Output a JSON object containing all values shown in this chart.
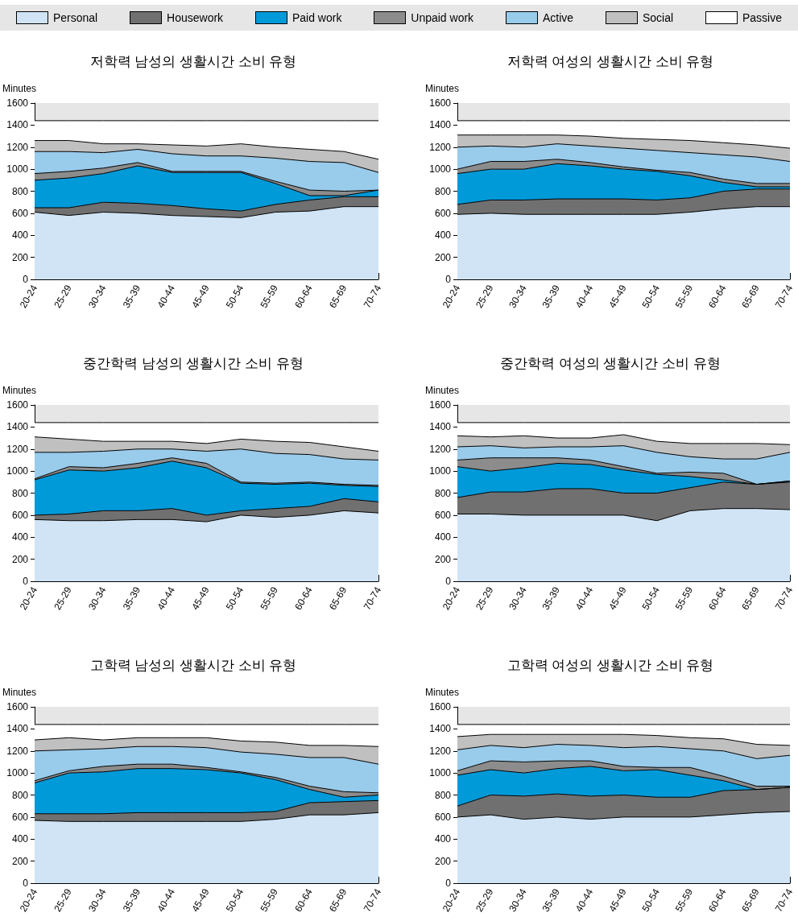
{
  "chart_data": [
    {
      "type": "area",
      "stacked": true,
      "title": "저학력 남성의 생활시간 소비 유형",
      "ylabel": "Minutes",
      "legend": "top",
      "grid": false,
      "ylim": [
        0,
        1600
      ],
      "yticks": [
        0,
        200,
        400,
        600,
        800,
        1000,
        1200,
        1400,
        1600
      ],
      "categories": [
        "20-24",
        "25-29",
        "30-34",
        "35-39",
        "40-44",
        "45-49",
        "50-54",
        "55-59",
        "60-64",
        "65-69",
        "70-74"
      ],
      "series": [
        {
          "name": "Personal",
          "color": "#d0e4f5",
          "values": [
            610,
            580,
            610,
            600,
            580,
            570,
            560,
            610,
            620,
            660,
            660
          ]
        },
        {
          "name": "Housework",
          "color": "#707070",
          "values": [
            40,
            70,
            90,
            90,
            90,
            70,
            60,
            70,
            100,
            90,
            90
          ]
        },
        {
          "name": "Paid work",
          "color": "#009ad9",
          "values": [
            250,
            270,
            260,
            340,
            300,
            330,
            350,
            190,
            40,
            10,
            60
          ]
        },
        {
          "name": "Unpaid work",
          "color": "#8c8c8c",
          "values": [
            60,
            60,
            50,
            30,
            10,
            10,
            10,
            20,
            50,
            40,
            0
          ]
        },
        {
          "name": "Active",
          "color": "#99cbeb",
          "values": [
            200,
            180,
            140,
            120,
            160,
            140,
            140,
            210,
            260,
            260,
            160
          ]
        },
        {
          "name": "Social",
          "color": "#c0c0c0",
          "values": [
            100,
            100,
            80,
            50,
            80,
            90,
            110,
            100,
            110,
            100,
            120
          ]
        },
        {
          "name": "Passive",
          "color": "#ffffff",
          "values": [
            180,
            180,
            210,
            210,
            220,
            230,
            210,
            240,
            260,
            280,
            350
          ]
        }
      ]
    },
    {
      "type": "area",
      "stacked": true,
      "title": "저학력 여성의 생활시간 소비 유형",
      "ylabel": "Minutes",
      "grid": false,
      "ylim": [
        0,
        1600
      ],
      "yticks": [
        0,
        200,
        400,
        600,
        800,
        1000,
        1200,
        1400,
        1600
      ],
      "categories": [
        "20-24",
        "25-29",
        "30-34",
        "35-39",
        "40-44",
        "45-49",
        "50-54",
        "55-59",
        "60-64",
        "65-69",
        "70-74"
      ],
      "series": [
        {
          "color": "#d0e4f5",
          "values": [
            590,
            600,
            590,
            590,
            590,
            590,
            590,
            610,
            640,
            660,
            660
          ]
        },
        {
          "color": "#707070",
          "values": [
            90,
            120,
            130,
            140,
            140,
            140,
            130,
            130,
            160,
            160,
            160
          ]
        },
        {
          "color": "#009ad9",
          "values": [
            280,
            280,
            280,
            320,
            300,
            270,
            260,
            200,
            80,
            20,
            20
          ]
        },
        {
          "color": "#8c8c8c",
          "values": [
            40,
            70,
            70,
            40,
            30,
            20,
            10,
            30,
            30,
            30,
            30
          ]
        },
        {
          "color": "#99cbeb",
          "values": [
            200,
            140,
            130,
            140,
            150,
            170,
            180,
            180,
            220,
            240,
            200
          ]
        },
        {
          "color": "#c0c0c0",
          "values": [
            110,
            100,
            110,
            80,
            90,
            90,
            100,
            110,
            110,
            110,
            120
          ]
        },
        {
          "color": "#ffffff",
          "values": [
            130,
            130,
            130,
            130,
            140,
            160,
            170,
            180,
            200,
            220,
            250
          ]
        }
      ]
    },
    {
      "type": "area",
      "stacked": true,
      "title": "중간학력 남성의 생활시간 소비 유형",
      "ylabel": "Minutes",
      "grid": false,
      "ylim": [
        0,
        1600
      ],
      "yticks": [
        0,
        200,
        400,
        600,
        800,
        1000,
        1200,
        1400,
        1600
      ],
      "categories": [
        "20-24",
        "25-29",
        "30-34",
        "35-39",
        "40-44",
        "45-49",
        "50-54",
        "55-59",
        "60-64",
        "65-69",
        "70-74"
      ],
      "series": [
        {
          "color": "#d0e4f5",
          "values": [
            560,
            550,
            550,
            560,
            560,
            540,
            600,
            580,
            600,
            640,
            620
          ]
        },
        {
          "color": "#707070",
          "values": [
            40,
            60,
            90,
            80,
            100,
            60,
            40,
            80,
            80,
            110,
            100
          ]
        },
        {
          "color": "#009ad9",
          "values": [
            320,
            400,
            360,
            390,
            430,
            430,
            250,
            220,
            210,
            120,
            140
          ]
        },
        {
          "color": "#8c8c8c",
          "values": [
            10,
            30,
            30,
            40,
            30,
            40,
            10,
            10,
            10,
            10,
            10
          ]
        },
        {
          "color": "#99cbeb",
          "values": [
            240,
            130,
            150,
            130,
            80,
            110,
            300,
            270,
            250,
            230,
            230
          ]
        },
        {
          "color": "#c0c0c0",
          "values": [
            140,
            120,
            90,
            70,
            70,
            70,
            90,
            110,
            110,
            110,
            80
          ]
        },
        {
          "color": "#ffffff",
          "values": [
            130,
            150,
            170,
            170,
            170,
            190,
            150,
            170,
            180,
            220,
            260
          ]
        }
      ]
    },
    {
      "type": "area",
      "stacked": true,
      "title": "중간학력 여성의 생활시간 소비 유형",
      "ylabel": "Minutes",
      "grid": false,
      "ylim": [
        0,
        1600
      ],
      "yticks": [
        0,
        200,
        400,
        600,
        800,
        1000,
        1200,
        1400,
        1600
      ],
      "categories": [
        "20-24",
        "25-29",
        "30-34",
        "35-39",
        "40-44",
        "45-49",
        "50-54",
        "55-59",
        "60-64",
        "65-69",
        "70-74"
      ],
      "series": [
        {
          "color": "#d0e4f5",
          "values": [
            610,
            610,
            600,
            600,
            600,
            600,
            550,
            640,
            660,
            660,
            650
          ]
        },
        {
          "color": "#707070",
          "values": [
            150,
            200,
            210,
            240,
            240,
            200,
            250,
            210,
            240,
            220,
            250
          ]
        },
        {
          "color": "#009ad9",
          "values": [
            280,
            190,
            220,
            230,
            220,
            210,
            170,
            100,
            20,
            0,
            10
          ]
        },
        {
          "color": "#8c8c8c",
          "values": [
            60,
            120,
            90,
            50,
            40,
            30,
            10,
            40,
            60,
            0,
            0
          ]
        },
        {
          "color": "#99cbeb",
          "values": [
            120,
            110,
            90,
            100,
            120,
            190,
            190,
            140,
            130,
            230,
            260
          ]
        },
        {
          "color": "#c0c0c0",
          "values": [
            100,
            80,
            110,
            80,
            80,
            100,
            100,
            120,
            140,
            140,
            70
          ]
        },
        {
          "color": "#ffffff",
          "values": [
            120,
            130,
            120,
            140,
            140,
            110,
            170,
            190,
            190,
            190,
            200
          ]
        }
      ]
    },
    {
      "type": "area",
      "stacked": true,
      "title": "고학력 남성의 생활시간 소비 유형",
      "ylabel": "Minutes",
      "grid": false,
      "ylim": [
        0,
        1600
      ],
      "yticks": [
        0,
        200,
        400,
        600,
        800,
        1000,
        1200,
        1400,
        1600
      ],
      "categories": [
        "20-24",
        "25-29",
        "30-34",
        "35-39",
        "40-44",
        "45-49",
        "50-54",
        "55-59",
        "60-64",
        "65-69",
        "70-74"
      ],
      "series": [
        {
          "color": "#d0e4f5",
          "values": [
            570,
            560,
            560,
            560,
            560,
            560,
            560,
            580,
            620,
            620,
            640
          ]
        },
        {
          "color": "#707070",
          "values": [
            60,
            70,
            70,
            80,
            80,
            80,
            80,
            70,
            110,
            120,
            110
          ]
        },
        {
          "color": "#009ad9",
          "values": [
            280,
            370,
            380,
            400,
            400,
            390,
            360,
            290,
            120,
            40,
            50
          ]
        },
        {
          "color": "#8c8c8c",
          "values": [
            20,
            20,
            50,
            40,
            40,
            20,
            10,
            20,
            30,
            50,
            20
          ]
        },
        {
          "color": "#99cbeb",
          "values": [
            270,
            190,
            160,
            160,
            160,
            180,
            180,
            210,
            260,
            310,
            260
          ]
        },
        {
          "color": "#c0c0c0",
          "values": [
            100,
            110,
            80,
            80,
            80,
            90,
            100,
            110,
            110,
            110,
            160
          ]
        },
        {
          "color": "#ffffff",
          "values": [
            140,
            120,
            140,
            120,
            120,
            120,
            150,
            160,
            190,
            190,
            200
          ]
        }
      ]
    },
    {
      "type": "area",
      "stacked": true,
      "title": "고학력 여성의 생활시간 소비 유형",
      "ylabel": "Minutes",
      "grid": false,
      "ylim": [
        0,
        1600
      ],
      "yticks": [
        0,
        200,
        400,
        600,
        800,
        1000,
        1200,
        1400,
        1600
      ],
      "categories": [
        "20-24",
        "25-29",
        "30-34",
        "35-39",
        "40-44",
        "45-49",
        "50-54",
        "55-59",
        "60-64",
        "65-69",
        "70-74"
      ],
      "series": [
        {
          "color": "#d0e4f5",
          "values": [
            600,
            620,
            580,
            600,
            580,
            600,
            600,
            600,
            620,
            640,
            650
          ]
        },
        {
          "color": "#707070",
          "values": [
            100,
            180,
            210,
            210,
            210,
            200,
            180,
            180,
            220,
            210,
            220
          ]
        },
        {
          "color": "#009ad9",
          "values": [
            280,
            230,
            210,
            230,
            270,
            220,
            250,
            200,
            90,
            0,
            0
          ]
        },
        {
          "color": "#8c8c8c",
          "values": [
            40,
            80,
            100,
            70,
            50,
            40,
            20,
            70,
            40,
            30,
            10
          ]
        },
        {
          "color": "#99cbeb",
          "values": [
            190,
            140,
            130,
            150,
            140,
            170,
            190,
            170,
            230,
            250,
            280
          ]
        },
        {
          "color": "#c0c0c0",
          "values": [
            120,
            100,
            120,
            90,
            100,
            120,
            100,
            100,
            110,
            130,
            90
          ]
        },
        {
          "color": "#ffffff",
          "values": [
            110,
            90,
            90,
            90,
            90,
            90,
            100,
            120,
            130,
            180,
            190
          ]
        }
      ]
    }
  ]
}
